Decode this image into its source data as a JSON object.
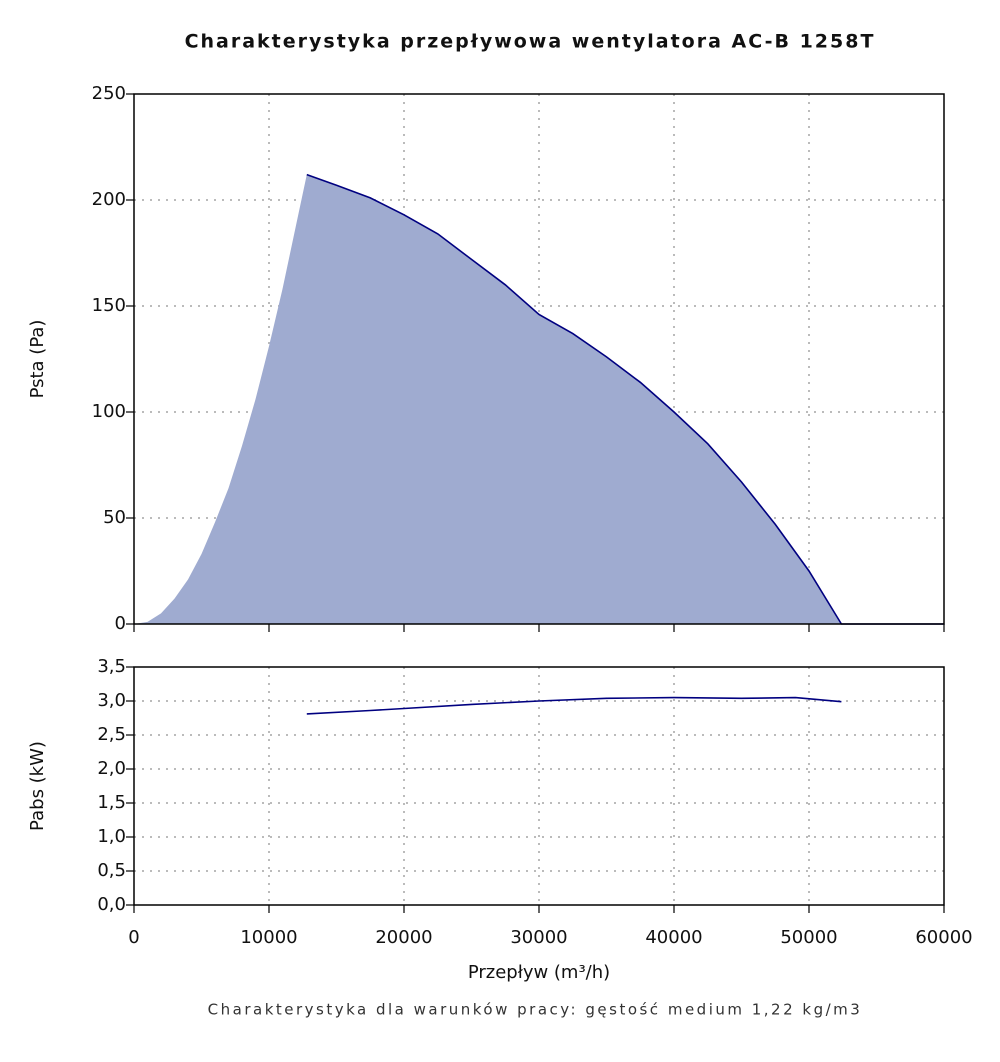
{
  "chart_data": [
    {
      "type": "area",
      "title": "Charakterystyka przepływowa wentylatora AC-B 1258T",
      "ylabel": "Psta (Pa)",
      "x": [
        0,
        1000,
        2000,
        3000,
        4000,
        5000,
        6000,
        7000,
        8000,
        9000,
        10000,
        11000,
        12000,
        12800,
        15000,
        17500,
        20000,
        22500,
        25000,
        27500,
        30000,
        32500,
        35000,
        37500,
        40000,
        42500,
        45000,
        47500,
        50000,
        52400,
        60000
      ],
      "series": [
        {
          "style": "area",
          "color": "#9fabd0",
          "values": [
            0,
            1,
            5,
            12,
            21,
            33,
            48,
            64,
            84,
            106,
            131,
            158,
            188,
            212,
            207,
            201,
            193,
            184,
            172,
            160,
            146,
            137,
            126,
            114,
            100,
            85,
            67,
            47,
            25,
            0,
            0
          ]
        },
        {
          "style": "line",
          "color": "#000080",
          "values": [
            null,
            null,
            null,
            null,
            null,
            null,
            null,
            null,
            null,
            null,
            null,
            null,
            null,
            212,
            207,
            201,
            193,
            184,
            172,
            160,
            146,
            137,
            126,
            114,
            100,
            85,
            67,
            47,
            25,
            0,
            0
          ]
        }
      ],
      "xlim": [
        0,
        60000
      ],
      "xticks": [
        0,
        10000,
        20000,
        30000,
        40000,
        50000,
        60000
      ],
      "ylim": [
        0,
        250
      ],
      "yticks": [
        0,
        50,
        100,
        150,
        200,
        250
      ],
      "grid": true
    },
    {
      "type": "line",
      "ylabel": "Pabs (kW)",
      "xlabel": "Przepływ (m³/h)",
      "note": "Charakterystyka dla warunków pracy: gęstość medium 1,22 kg/m3",
      "x": [
        12800,
        17500,
        20000,
        25000,
        30000,
        35000,
        40000,
        45000,
        49000,
        52400
      ],
      "series": [
        {
          "style": "line",
          "color": "#000080",
          "values": [
            2.81,
            2.86,
            2.89,
            2.95,
            3.0,
            3.04,
            3.05,
            3.04,
            3.05,
            2.99
          ]
        }
      ],
      "xlim": [
        0,
        60000
      ],
      "xticks": [
        0,
        10000,
        20000,
        30000,
        40000,
        50000,
        60000
      ],
      "ylim": [
        0,
        3.5
      ],
      "yticks": [
        {
          "value": 0,
          "label": "0,0"
        },
        {
          "value": 0.5,
          "label": "0,5"
        },
        {
          "value": 1,
          "label": "1,0"
        },
        {
          "value": 1.5,
          "label": "1,5"
        },
        {
          "value": 2,
          "label": "2,0"
        },
        {
          "value": 2.5,
          "label": "2,5"
        },
        {
          "value": 3,
          "label": "3,0"
        },
        {
          "value": 3.5,
          "label": "3,5"
        }
      ],
      "grid": true
    }
  ]
}
